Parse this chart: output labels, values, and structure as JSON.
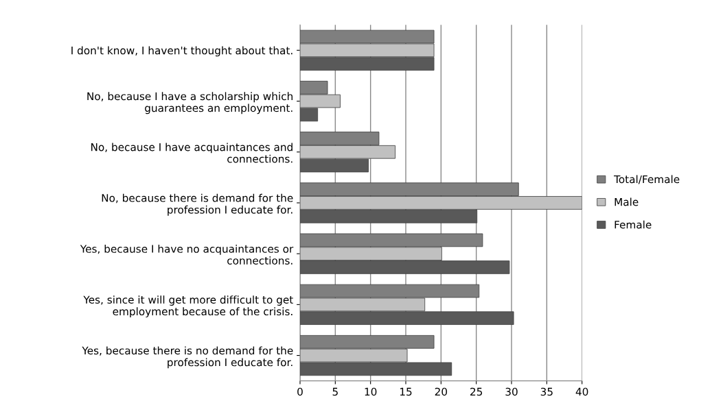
{
  "chart_data": {
    "type": "bar",
    "orientation": "horizontal",
    "categories": [
      "I don't know, I haven't thought about that.",
      "No, because I have a scholarship which\nguarantees an employment.",
      "No, because I have acquaintances and\nconnections.",
      "No, because there is demand for the\nprofession I educate for.",
      "Yes, because I have no acquaintances or\nconnections.",
      "Yes, since it will get more difficult to get\nemployment because of the crisis.",
      "Yes, because there is no demand for the\nprofession I educate for."
    ],
    "series": [
      {
        "name": "Total/Female",
        "color": "#7f7f7f",
        "values": [
          19.0,
          3.9,
          11.2,
          31.0,
          25.9,
          25.4,
          19.0
        ]
      },
      {
        "name": "Male",
        "color": "#c0c0c0",
        "values": [
          19.0,
          5.7,
          13.5,
          40,
          20.1,
          17.7,
          15.2
        ]
      },
      {
        "name": "Female",
        "color": "#595959",
        "values": [
          19.0,
          2.5,
          9.7,
          25.1,
          29.7,
          30.3,
          21.5
        ]
      }
    ],
    "xlim": [
      0,
      40
    ],
    "xticks": [
      0,
      5,
      10,
      15,
      20,
      25,
      30,
      35,
      40
    ],
    "grid": "x",
    "legend": "right"
  }
}
